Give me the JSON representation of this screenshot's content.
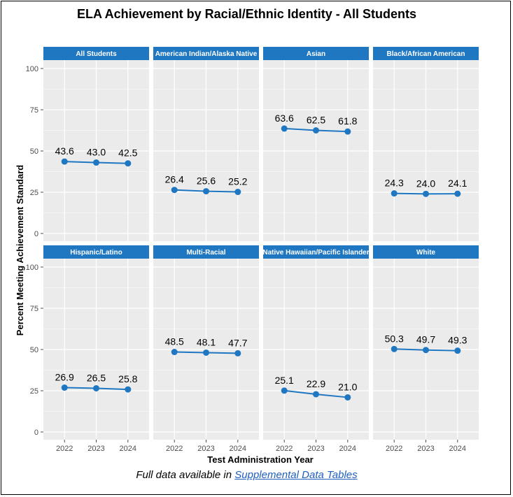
{
  "title": "ELA Achievement by Racial/Ethnic Identity - All Students",
  "footnote": {
    "prefix": "Full data available in ",
    "link_text": "Supplemental Data Tables"
  },
  "colors": {
    "strip": "#1f77c2",
    "line": "#1f77c2",
    "panel_bg": "#ebebeb",
    "grid": "#ffffff"
  },
  "chart_data": {
    "type": "line",
    "facet_layout": "2 rows x 4 columns",
    "xlabel": "Test Administration Year",
    "ylabel": "Percent Meeting Achievement Standard",
    "ylim": [
      0,
      100
    ],
    "yticks": [
      0,
      25,
      50,
      75,
      100
    ],
    "x": [
      "2022",
      "2023",
      "2024"
    ],
    "grid": true,
    "panels": [
      {
        "name": "All Students",
        "values": [
          43.6,
          43.0,
          42.5
        ],
        "labels": [
          "43.6",
          "43.0",
          "42.5"
        ]
      },
      {
        "name": "American Indian/Alaska Native",
        "values": [
          26.4,
          25.6,
          25.2
        ],
        "labels": [
          "26.4",
          "25.6",
          "25.2"
        ]
      },
      {
        "name": "Asian",
        "values": [
          63.6,
          62.5,
          61.8
        ],
        "labels": [
          "63.6",
          "62.5",
          "61.8"
        ]
      },
      {
        "name": "Black/African American",
        "values": [
          24.3,
          24.0,
          24.1
        ],
        "labels": [
          "24.3",
          "24.0",
          "24.1"
        ]
      },
      {
        "name": "Hispanic/Latino",
        "values": [
          26.9,
          26.5,
          25.8
        ],
        "labels": [
          "26.9",
          "26.5",
          "25.8"
        ]
      },
      {
        "name": "Multi-Racial",
        "values": [
          48.5,
          48.1,
          47.7
        ],
        "labels": [
          "48.5",
          "48.1",
          "47.7"
        ]
      },
      {
        "name": "Native Hawaiian/Pacific Islander",
        "values": [
          25.1,
          22.9,
          21.0
        ],
        "labels": [
          "25.1",
          "22.9",
          "21.0"
        ]
      },
      {
        "name": "White",
        "values": [
          50.3,
          49.7,
          49.3
        ],
        "labels": [
          "50.3",
          "49.7",
          "49.3"
        ]
      }
    ]
  }
}
